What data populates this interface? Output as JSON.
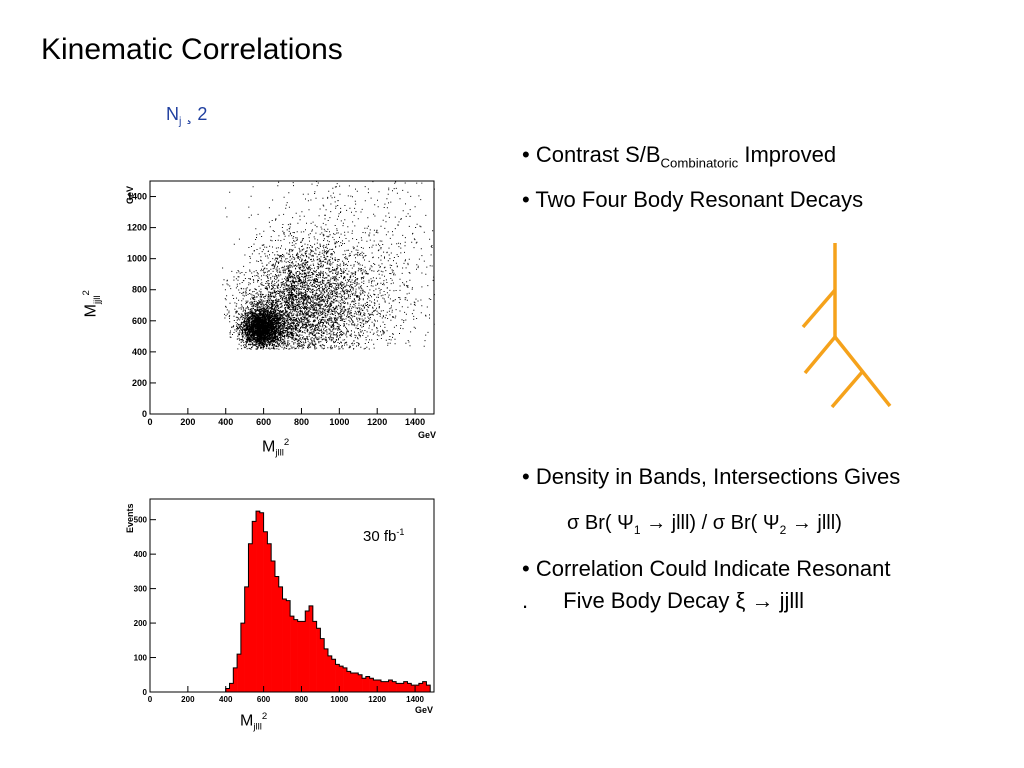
{
  "slide": {
    "title": "Kinematic Correlations",
    "condition": {
      "main": "N",
      "sub": "j",
      "rest": " ¸ 2"
    }
  },
  "bullets": {
    "b1": {
      "pre": "• Contrast S/B",
      "sub": "Combinatoric",
      "post": " Improved"
    },
    "b2": "• Two Four Body Resonant Decays",
    "b3": "• Density in Bands, Intersections Gives",
    "formula": {
      "sigma1": "σ",
      "br1": " Br( ",
      "psi1": "Ψ",
      "idx1": "1",
      "arrow1": " → ",
      "mid": "jlll) / ",
      "sigma2": "σ",
      "br2": " Br( ",
      "psi2": "Ψ",
      "idx2": "2",
      "arrow2": " → ",
      "end": "jlll)"
    },
    "b4": "• Correlation Could Indicate Resonant",
    "b5": {
      "dot": ".",
      "text": "Five Body Decay ",
      "xi": "ξ",
      "arrow": " → ",
      "end": "jjlll"
    }
  },
  "scatter": {
    "ylabel": {
      "main": "M",
      "sub": "jjll",
      "sup": "2"
    },
    "xlabel": {
      "main": "M",
      "sub": "jlll",
      "sup": "2"
    },
    "x_unit": "GeV",
    "y_unit": "GeV",
    "x_ticks": [
      "0",
      "200",
      "400",
      "600",
      "800",
      "1000",
      "1200",
      "1400"
    ],
    "y_ticks": [
      "0",
      "200",
      "400",
      "600",
      "800",
      "1000",
      "1200",
      "1400"
    ]
  },
  "histogram": {
    "ylabel": "Events",
    "x_unit": "GeV",
    "xlabel": {
      "main": "M",
      "sub": "jlll",
      "sup": "2"
    },
    "lumi": {
      "main": "30 fb",
      "sup": "-1"
    },
    "x_ticks": [
      "0",
      "200",
      "400",
      "600",
      "800",
      "1000",
      "1200",
      "1400"
    ],
    "y_ticks": [
      "0",
      "100",
      "200",
      "300",
      "400",
      "500"
    ]
  },
  "chart_data": [
    {
      "type": "scatter",
      "xlim": [
        0,
        1500
      ],
      "ylim": [
        0,
        1500
      ],
      "clusters": [
        {
          "x_center": 560,
          "y_center": 560,
          "x_spread": 70,
          "y_spread": 60,
          "weight": 0.4
        },
        {
          "x_center": 720,
          "y_center": 700,
          "x_spread": 220,
          "y_spread": 190,
          "weight": 0.45
        },
        {
          "x_center": 900,
          "y_center": 900,
          "x_spread": 400,
          "y_spread": 420,
          "weight": 0.15
        }
      ]
    },
    {
      "type": "bar",
      "xlim": [
        0,
        1500
      ],
      "ylim": [
        0,
        560
      ],
      "x": [
        410,
        430,
        450,
        470,
        490,
        510,
        530,
        550,
        570,
        590,
        610,
        630,
        650,
        670,
        690,
        710,
        730,
        750,
        770,
        790,
        810,
        830,
        850,
        870,
        890,
        910,
        930,
        950,
        970,
        990,
        1010,
        1030,
        1050,
        1070,
        1090,
        1110,
        1130,
        1150,
        1170,
        1190,
        1210,
        1230,
        1250,
        1270,
        1290,
        1310,
        1330,
        1350,
        1370,
        1390,
        1410,
        1430,
        1450,
        1470
      ],
      "values": [
        10,
        25,
        70,
        110,
        200,
        305,
        430,
        495,
        525,
        520,
        465,
        430,
        380,
        335,
        305,
        270,
        265,
        220,
        210,
        205,
        205,
        235,
        250,
        205,
        185,
        155,
        125,
        105,
        95,
        80,
        75,
        70,
        60,
        55,
        55,
        50,
        40,
        45,
        40,
        35,
        35,
        30,
        30,
        35,
        30,
        25,
        25,
        30,
        25,
        20,
        20,
        25,
        30,
        20
      ]
    }
  ]
}
